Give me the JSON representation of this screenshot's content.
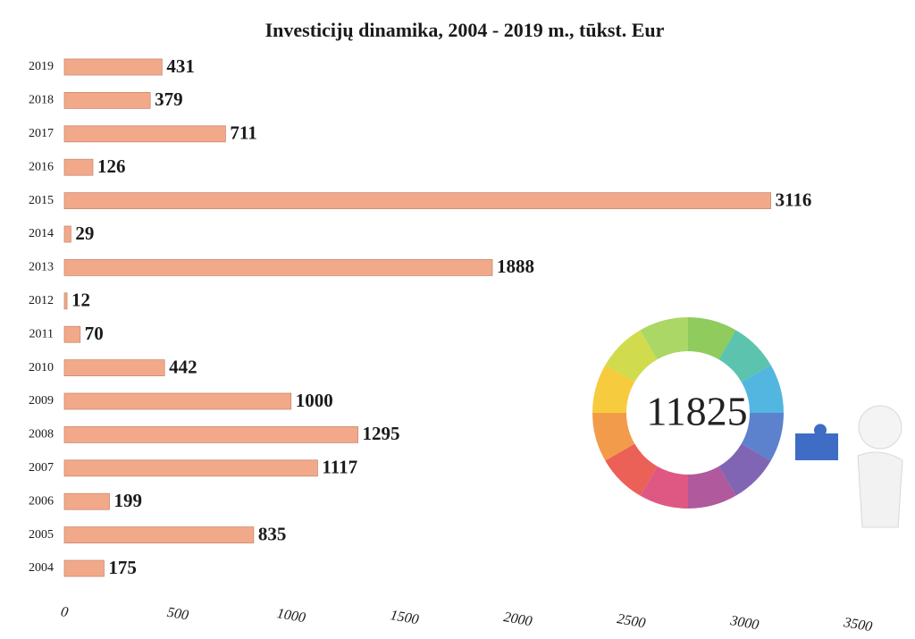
{
  "chart_data": {
    "type": "hbar",
    "title": "Investicijų dinamika, 2004 - 2019 m., tūkst. Eur",
    "categories": [
      "2019",
      "2018",
      "2017",
      "2016",
      "2015",
      "2014",
      "2013",
      "2012",
      "2011",
      "2010",
      "2009",
      "2008",
      "2007",
      "2006",
      "2005",
      "2004"
    ],
    "values": [
      431,
      379,
      711,
      126,
      3116,
      29,
      1888,
      12,
      70,
      442,
      1000,
      1295,
      1117,
      199,
      835,
      175
    ],
    "color": "#f2a98a",
    "xlim": [
      0,
      3500
    ],
    "xticks": [
      0,
      500,
      1000,
      1500,
      2000,
      2500,
      3000,
      3500
    ],
    "grid": false,
    "annotation": "11825"
  }
}
